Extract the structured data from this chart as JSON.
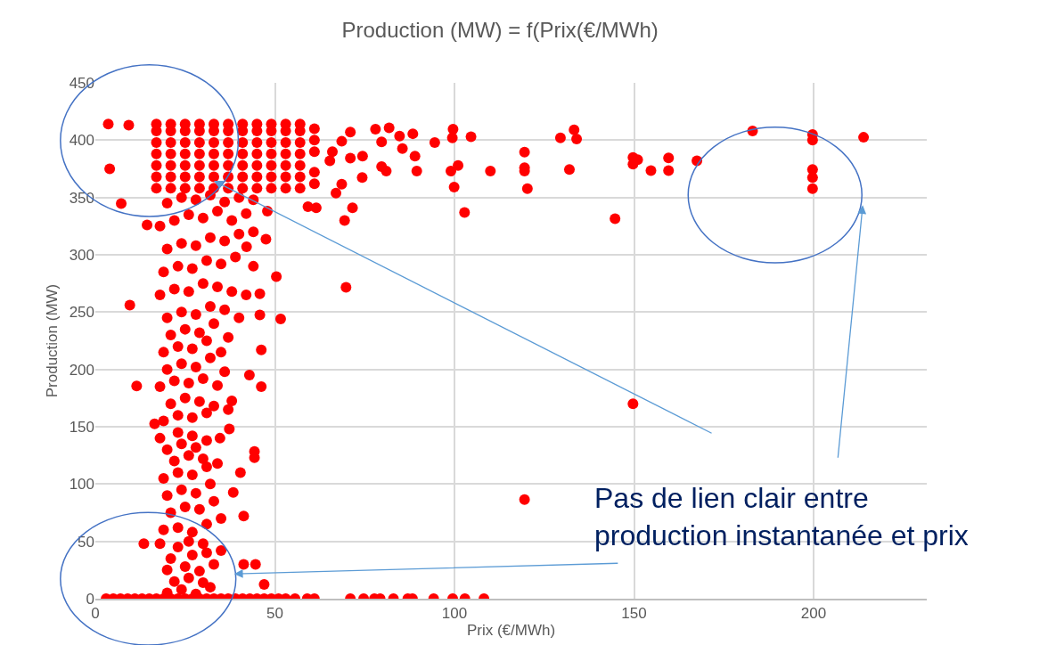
{
  "chart_data": {
    "type": "scatter",
    "title": "Production (MW) = f(Prix(€/MWh)",
    "xlabel": "Prix (€/MWh)",
    "ylabel": "Production (MW)",
    "annotations": [
      "Pas de lien clair entre\nproduction instantanée et prix"
    ],
    "xlim": [
      0,
      231.5
    ],
    "xticks": [
      0,
      50,
      100,
      150,
      200
    ],
    "ylim": [
      0,
      450
    ],
    "yticks": [
      0,
      50,
      100,
      150,
      200,
      250,
      300,
      350,
      400,
      450
    ],
    "grid": true,
    "marker": "circle",
    "series": [
      {
        "color": "#ff0000",
        "x": [
          3,
          5,
          7,
          9,
          11,
          13,
          15,
          17,
          19,
          21,
          23,
          25,
          27,
          29,
          31,
          33,
          35,
          37,
          39,
          41,
          43,
          45,
          47,
          49,
          51,
          53,
          55.6,
          59,
          61,
          71,
          74.7,
          77.7,
          79.3,
          83,
          87,
          88.3,
          94.2,
          99.5,
          102.9,
          108.2,
          20,
          24,
          28,
          32,
          22,
          26,
          30,
          20,
          25,
          29,
          33,
          21,
          27,
          31,
          23,
          18,
          13.5,
          35,
          41.3,
          44.6,
          47,
          26,
          30,
          19,
          23,
          27,
          31,
          35,
          21,
          25,
          29,
          33,
          20,
          24,
          28,
          32,
          19,
          23,
          27,
          31,
          22,
          26,
          30,
          34,
          20,
          24,
          28,
          18,
          23,
          27,
          31,
          41.3,
          38.4,
          40.4,
          44.3,
          44.3,
          34.7,
          37.3,
          19,
          23,
          27,
          31,
          16.5,
          21,
          25,
          29,
          33,
          37,
          38,
          18,
          11.5,
          22,
          26,
          30,
          34,
          20,
          24,
          28,
          32,
          36,
          42.9,
          46.2,
          19,
          23,
          27,
          31,
          35,
          46.2,
          21,
          25,
          29,
          33,
          37,
          20,
          24,
          28,
          32,
          36,
          9.6,
          40,
          18,
          22,
          26,
          30,
          34,
          38,
          42,
          45.8,
          45.8,
          51.6,
          50.4,
          19,
          23,
          27,
          31,
          35,
          39,
          44,
          20,
          24,
          28,
          32,
          36,
          40,
          42.1,
          44,
          47.5,
          18,
          14.4,
          22,
          26,
          30,
          34,
          38,
          42,
          47.9,
          20,
          24,
          28,
          32,
          36,
          40,
          44,
          7.2,
          17,
          21,
          25,
          29,
          33,
          37,
          41,
          45,
          49,
          53,
          57,
          17,
          21,
          25,
          29,
          33,
          37,
          41,
          45,
          49,
          53,
          57,
          17,
          21,
          25,
          29,
          33,
          37,
          41,
          45,
          49,
          53,
          57,
          17,
          21,
          25,
          29,
          33,
          37,
          41,
          45,
          49,
          53,
          57,
          17,
          21,
          25,
          29,
          33,
          37,
          41,
          45,
          49,
          53,
          57,
          17,
          21,
          25,
          29,
          33,
          37,
          41,
          45,
          49,
          53,
          57,
          17,
          21,
          25,
          29,
          33,
          37,
          41,
          45,
          49,
          53,
          57,
          61,
          61,
          61,
          61,
          61,
          65.3,
          66,
          67,
          68.6,
          68.6,
          71,
          71,
          69.4,
          71.6,
          59.2,
          61.5,
          69.8,
          74.3,
          74.4,
          78,
          79.7,
          79.7,
          81,
          81.8,
          84.7,
          85.5,
          88.4,
          89,
          89.5,
          94.5,
          99.6,
          99.4,
          104.6,
          101,
          99,
          99.9,
          102.8,
          110,
          3.6,
          9.3,
          4,
          119.5,
          119.5,
          119.5,
          120.3,
          129.5,
          133.3,
          134,
          132,
          144.7,
          149.7,
          151,
          149.7,
          154.7,
          159.6,
          159.6,
          167.5,
          183,
          199.7,
          199.7,
          199.7,
          199.7,
          199.7,
          213.9,
          149.7,
          119.5
        ],
        "values": [
          0,
          0,
          0,
          0,
          0,
          0,
          0,
          0,
          0,
          0,
          0,
          0,
          0,
          0,
          0,
          0,
          0,
          0,
          0,
          0,
          0,
          0,
          0,
          0,
          0,
          0,
          0,
          0,
          0,
          0,
          0,
          0,
          0,
          0,
          0,
          0,
          0,
          0,
          0,
          0,
          5,
          8,
          4,
          10,
          15,
          18,
          14,
          25,
          28,
          24,
          30,
          35,
          38,
          40,
          45,
          48,
          48,
          42,
          30,
          30,
          12.4,
          50,
          48,
          60,
          62,
          58,
          65,
          70,
          75,
          80,
          78,
          85,
          90,
          95,
          92,
          100,
          105,
          110,
          108,
          115,
          120,
          125,
          122,
          118,
          130,
          135,
          132,
          140,
          145,
          142,
          138,
          72,
          92.7,
          110,
          128.5,
          123,
          140,
          148,
          155,
          160,
          158,
          162,
          152.5,
          170,
          175,
          172,
          168,
          165,
          172.6,
          185,
          185.5,
          190,
          188,
          192,
          186,
          200,
          205,
          202,
          210,
          198,
          195,
          185,
          215,
          220,
          218,
          225,
          215,
          217,
          230,
          235,
          232,
          240,
          228,
          245,
          250,
          248,
          255,
          252,
          256,
          245,
          265,
          270,
          268,
          275,
          272,
          268,
          265,
          266,
          247.6,
          244,
          281,
          285,
          290,
          288,
          295,
          292,
          298,
          290,
          305,
          310,
          308,
          315,
          312,
          318,
          307,
          320,
          313.6,
          325,
          326,
          330,
          335,
          332,
          338,
          330,
          336,
          338,
          345,
          350,
          348,
          352,
          346,
          350,
          348,
          344.7,
          358,
          358,
          358,
          358,
          358,
          358,
          358,
          358,
          358,
          358,
          358,
          368,
          368,
          368,
          368,
          368,
          368,
          368,
          368,
          368,
          368,
          368,
          378,
          378,
          378,
          378,
          378,
          378,
          378,
          378,
          378,
          378,
          378,
          388,
          388,
          388,
          388,
          388,
          388,
          388,
          388,
          388,
          388,
          388,
          398,
          398,
          398,
          398,
          398,
          398,
          398,
          398,
          398,
          398,
          398,
          408,
          408,
          408,
          408,
          408,
          408,
          408,
          408,
          408,
          408,
          408,
          414,
          414,
          414,
          414,
          414,
          414,
          414,
          414,
          414,
          414,
          414,
          362,
          372,
          390,
          400,
          410,
          382,
          390,
          353.8,
          361.6,
          399,
          407,
          384.4,
          330,
          341,
          342,
          341,
          271.7,
          367.5,
          386,
          409.5,
          398.5,
          377,
          373,
          410.7,
          403.5,
          392.6,
          405.6,
          386,
          373,
          398,
          409.5,
          402,
          403,
          378,
          373,
          359,
          337,
          373,
          414,
          413,
          375,
          389.5,
          376,
          373,
          357.7,
          402,
          409,
          401,
          374.5,
          331.4,
          385,
          383,
          379,
          373.4,
          384.6,
          373.4,
          382,
          408,
          405,
          400,
          374.5,
          367.5,
          357.7,
          402.5,
          170,
          86.5
        ]
      }
    ]
  }
}
